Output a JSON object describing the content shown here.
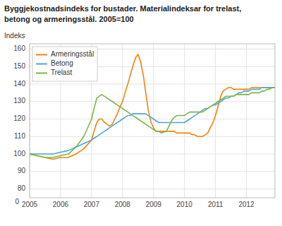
{
  "chart_data": {
    "type": "line",
    "title": "Byggjekostnadsindeks for bustader. Materialindeksar for trelast,",
    "subtitle": "betong og armeringsstål. 2005=100",
    "y_label": "Indeks",
    "annotations": [
      {
        "text": "0"
      }
    ],
    "xlim": [
      2005.0,
      2012.92
    ],
    "xticks": [
      2005,
      2006,
      2007,
      2008,
      2009,
      2010,
      2011,
      2012
    ],
    "ylim": [
      75,
      163
    ],
    "yticks": [
      80,
      90,
      100,
      110,
      120,
      130,
      140,
      150,
      160
    ],
    "grid": true,
    "legend": "upper left",
    "series": [
      {
        "name": "Armeringsstål",
        "color": "#f4820a",
        "x": [
          2005.0,
          2005.25,
          2005.5,
          2005.75,
          2006.0,
          2006.25,
          2006.5,
          2006.75,
          2007.0,
          2007.08,
          2007.17,
          2007.25,
          2007.33,
          2007.42,
          2007.5,
          2007.58,
          2007.67,
          2007.75,
          2007.83,
          2007.92,
          2008.0,
          2008.08,
          2008.17,
          2008.25,
          2008.33,
          2008.42,
          2008.5,
          2008.58,
          2008.67,
          2008.75,
          2008.83,
          2008.92,
          2009.0,
          2009.08,
          2009.17,
          2009.25,
          2009.33,
          2009.42,
          2009.5,
          2009.58,
          2009.67,
          2009.75,
          2009.83,
          2009.92,
          2010.0,
          2010.08,
          2010.17,
          2010.25,
          2010.33,
          2010.42,
          2010.5,
          2010.58,
          2010.67,
          2010.75,
          2010.83,
          2010.92,
          2011.0,
          2011.08,
          2011.17,
          2011.25,
          2011.33,
          2011.42,
          2011.5,
          2011.58,
          2011.67,
          2011.75,
          2011.83,
          2011.92,
          2012.0,
          2012.08,
          2012.17,
          2012.25,
          2012.33,
          2012.42,
          2012.5,
          2012.58,
          2012.67,
          2012.75,
          2012.83,
          2012.92
        ],
        "values": [
          100,
          99,
          98,
          97,
          98,
          98,
          100,
          103,
          108,
          113,
          118,
          120,
          120,
          118,
          117,
          116,
          117,
          120,
          123,
          127,
          130,
          135,
          140,
          145,
          150,
          155,
          157,
          153,
          145,
          135,
          125,
          118,
          115,
          113,
          113,
          113,
          113,
          113,
          113,
          113,
          113,
          112,
          112,
          112,
          112,
          112,
          112,
          111,
          111,
          110,
          110,
          110,
          111,
          112,
          115,
          118,
          122,
          127,
          133,
          136,
          137,
          138,
          138,
          137,
          137,
          137,
          137,
          137,
          137,
          137,
          138,
          138,
          138,
          138,
          138,
          138,
          138,
          138,
          138,
          138
        ]
      },
      {
        "name": "Betong",
        "color": "#4da6d6",
        "x": [
          2005.0,
          2005.25,
          2005.5,
          2005.75,
          2006.0,
          2006.25,
          2006.5,
          2006.75,
          2007.0,
          2007.08,
          2007.17,
          2007.25,
          2007.33,
          2007.42,
          2007.5,
          2007.58,
          2007.67,
          2007.75,
          2007.83,
          2007.92,
          2008.0,
          2008.08,
          2008.17,
          2008.25,
          2008.33,
          2008.42,
          2008.5,
          2008.58,
          2008.67,
          2008.75,
          2008.83,
          2008.92,
          2009.0,
          2009.08,
          2009.17,
          2009.25,
          2009.33,
          2009.42,
          2009.5,
          2009.58,
          2009.67,
          2009.75,
          2009.83,
          2009.92,
          2010.0,
          2010.08,
          2010.17,
          2010.25,
          2010.33,
          2010.42,
          2010.5,
          2010.58,
          2010.67,
          2010.75,
          2010.83,
          2010.92,
          2011.0,
          2011.08,
          2011.17,
          2011.25,
          2011.33,
          2011.42,
          2011.5,
          2011.58,
          2011.67,
          2011.75,
          2011.83,
          2011.92,
          2012.0,
          2012.08,
          2012.17,
          2012.25,
          2012.33,
          2012.42,
          2012.5,
          2012.58,
          2012.67,
          2012.75,
          2012.83,
          2012.92
        ],
        "values": [
          100,
          100,
          100,
          100,
          101,
          102,
          104,
          106,
          108,
          109,
          110,
          111,
          112,
          113,
          114,
          115,
          116,
          117,
          118,
          119,
          120,
          121,
          122,
          122,
          123,
          123,
          123,
          123,
          123,
          123,
          122,
          121,
          120,
          119,
          118,
          118,
          118,
          118,
          118,
          118,
          118,
          118,
          118,
          118,
          118,
          119,
          120,
          121,
          122,
          123,
          124,
          125,
          126,
          126,
          127,
          128,
          128,
          129,
          130,
          131,
          132,
          132,
          133,
          133,
          134,
          135,
          135,
          136,
          136,
          136,
          137,
          137,
          137,
          137,
          138,
          138,
          138,
          138,
          138,
          138
        ]
      },
      {
        "name": "Trelast",
        "color": "#7ab648",
        "x": [
          2005.0,
          2005.25,
          2005.5,
          2005.75,
          2006.0,
          2006.25,
          2006.5,
          2006.75,
          2007.0,
          2007.08,
          2007.17,
          2007.25,
          2007.33,
          2007.42,
          2007.5,
          2007.58,
          2007.67,
          2007.75,
          2007.83,
          2007.92,
          2008.0,
          2008.08,
          2008.17,
          2008.25,
          2008.33,
          2008.42,
          2008.5,
          2008.58,
          2008.67,
          2008.75,
          2008.83,
          2008.92,
          2009.0,
          2009.08,
          2009.17,
          2009.25,
          2009.42,
          2009.5,
          2009.58,
          2009.67,
          2009.75,
          2009.83,
          2009.92,
          2010.0,
          2010.08,
          2010.17,
          2010.25,
          2010.33,
          2010.42,
          2010.5,
          2010.58,
          2010.67,
          2010.75,
          2010.83,
          2010.92,
          2011.0,
          2011.08,
          2011.17,
          2011.25,
          2011.33,
          2011.42,
          2011.5,
          2011.58,
          2011.67,
          2011.75,
          2011.83,
          2011.92,
          2012.0,
          2012.08,
          2012.17,
          2012.25,
          2012.33,
          2012.42,
          2012.5,
          2012.58,
          2012.67,
          2012.75,
          2012.83,
          2012.92
        ],
        "values": [
          100,
          99,
          98,
          98,
          99,
          100,
          104,
          110,
          120,
          126,
          132,
          133,
          134,
          133,
          132,
          131,
          130,
          129,
          128,
          127,
          126,
          125,
          124,
          123,
          122,
          121,
          120,
          119,
          118,
          117,
          116,
          115,
          114,
          113,
          113,
          112,
          113,
          116,
          119,
          121,
          122,
          122,
          122,
          122,
          123,
          124,
          124,
          124,
          124,
          124,
          124,
          125,
          126,
          127,
          128,
          129,
          130,
          131,
          132,
          133,
          133,
          133,
          133,
          134,
          134,
          134,
          134,
          134,
          134,
          135,
          135,
          135,
          135,
          136,
          136,
          137,
          137,
          138,
          138
        ]
      }
    ]
  }
}
